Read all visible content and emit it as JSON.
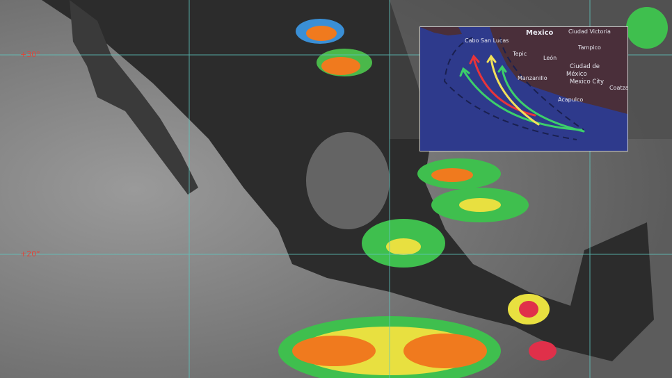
{
  "satellite": {
    "latitude_labels": [
      "+30°",
      "+20°"
    ]
  },
  "inset_map": {
    "country": "Mexico",
    "cities": [
      "Cabo San Lucas",
      "Ciudad Victoria",
      "Tepic",
      "León",
      "Tampico",
      "Ciudad de",
      "México",
      "Mexico City",
      "Manzanillo",
      "Acapulco",
      "Coatza"
    ],
    "track_colors": [
      "#3ccf6a",
      "#e8343a",
      "#f2e15a",
      "#3ccf6a"
    ],
    "land_color": "#4a2f3a",
    "ocean_color": "#2e3a8c"
  }
}
